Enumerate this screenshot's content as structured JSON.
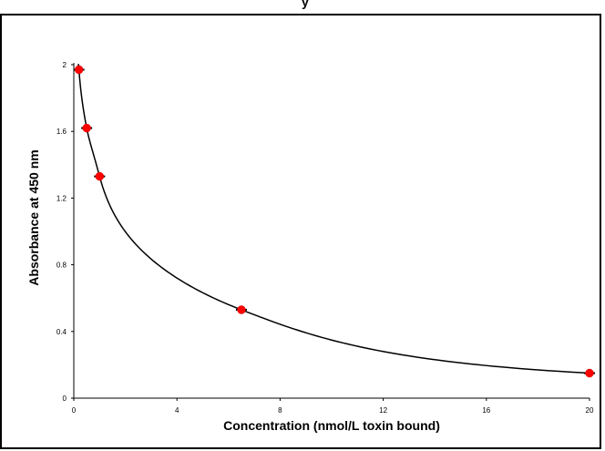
{
  "chart_data": {
    "type": "scatter",
    "title": "",
    "xlabel": "Concentration (nmol/L toxin bound)",
    "ylabel": "Absorbance  at 450 nm",
    "xlim": [
      0,
      20
    ],
    "ylim": [
      0,
      2
    ],
    "xticks": [
      0,
      4,
      8,
      12,
      16,
      20
    ],
    "yticks": [
      0,
      0.4,
      0.8,
      1.2,
      1.6,
      2
    ],
    "xtick_labels": [
      "0",
      "4",
      "8",
      "12",
      "16",
      "20"
    ],
    "ytick_labels": [
      "0",
      "0.4",
      "0.8",
      "1.2",
      "1.6",
      "2"
    ],
    "grid": false,
    "legend": "none",
    "point_color": "#ff0000",
    "curve_color": "#000000",
    "series": [
      {
        "points": [
          {
            "x": 0.2,
            "y": 1.97
          },
          {
            "x": 0.5,
            "y": 1.62
          },
          {
            "x": 1.0,
            "y": 1.33
          },
          {
            "x": 6.5,
            "y": 0.53
          },
          {
            "x": 20.0,
            "y": 0.15
          }
        ]
      }
    ],
    "fit_curve": true
  },
  "top_fragment_text": "y"
}
